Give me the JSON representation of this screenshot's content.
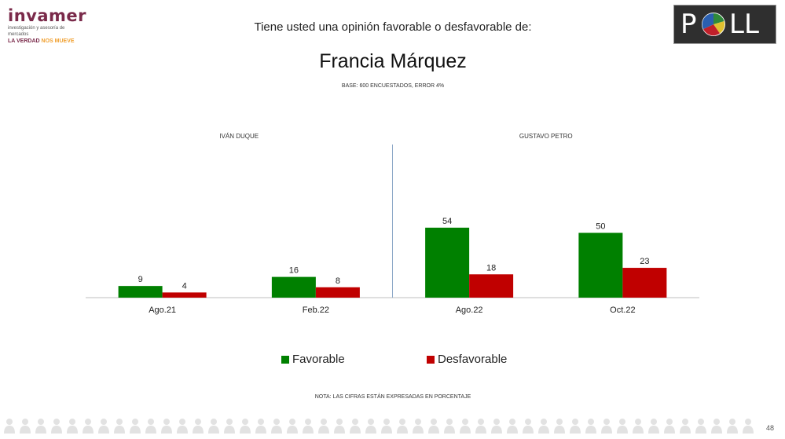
{
  "brand": {
    "name": "invamer",
    "subtitle": "investigación y asesoría de mercados",
    "tagline_main": "LA VERDAD",
    "tagline_accent": "NOS MUEVE"
  },
  "question": "Tiene usted una opinión favorable o desfavorable de:",
  "poll_logo": {
    "text_left": "P",
    "text_right": "LL"
  },
  "title": "Francia Márquez",
  "subtitle": "BASE: 600 ENCUESTADOS, ERROR 4%",
  "note": "NOTA: LAS CIFRAS ESTÁN EXPRESADAS EN PORCENTAJE",
  "page_number": "48",
  "colors": {
    "favorable": "#008000",
    "desfavorable": "#c00000",
    "brand": "#7a2a4a",
    "accent": "#f0a030"
  },
  "chart_data": {
    "type": "bar",
    "title": "Francia Márquez",
    "groups": [
      {
        "label": "IVÁN DUQUE",
        "categories": [
          "Ago.21",
          "Feb.22"
        ]
      },
      {
        "label": "GUSTAVO PETRO",
        "categories": [
          "Ago.22",
          "Oct.22"
        ]
      }
    ],
    "categories": [
      "Ago.21",
      "Feb.22",
      "Ago.22",
      "Oct.22"
    ],
    "series": [
      {
        "name": "Favorable",
        "color": "#008000",
        "values": [
          9,
          16,
          54,
          50
        ]
      },
      {
        "name": "Desfavorable",
        "color": "#c00000",
        "values": [
          4,
          8,
          18,
          23
        ]
      }
    ],
    "ylim": [
      0,
      100
    ],
    "grid": false,
    "legend": "bottom"
  }
}
